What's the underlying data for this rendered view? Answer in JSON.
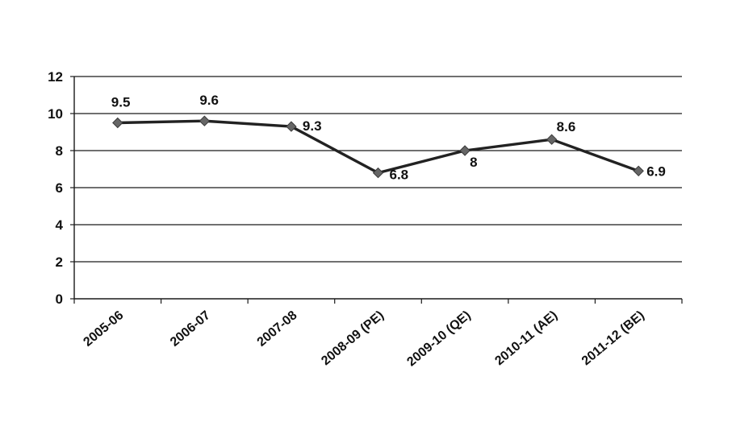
{
  "chart_data": {
    "type": "line",
    "categories": [
      "2005-06",
      "2006-07",
      "2007-08",
      "2008-09 (PE)",
      "2009-10 (QE)",
      "2010-11 (AE)",
      "2011-12 (BE)"
    ],
    "series": [
      {
        "values": [
          9.5,
          9.6,
          9.3,
          6.8,
          8,
          8.6,
          6.9
        ],
        "labels": [
          "9.5",
          "9.6",
          "9.3",
          "6.8",
          "8",
          "8.6",
          "6.9"
        ],
        "color": "#222222",
        "marker_color": "#666666"
      }
    ],
    "yticks": [
      "0",
      "2",
      "4",
      "6",
      "8",
      "10",
      "12"
    ],
    "ylim": [
      0,
      12
    ],
    "grid": true,
    "legend": "none",
    "title": "",
    "xlabel": "",
    "ylabel": ""
  }
}
